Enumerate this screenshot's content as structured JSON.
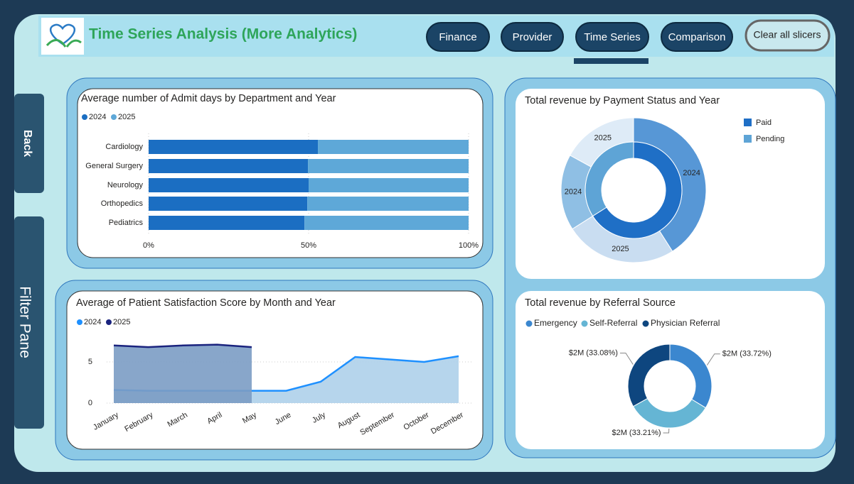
{
  "header": {
    "title": "Time Series Analysis (More Analytics)"
  },
  "nav": {
    "buttons": [
      "Finance",
      "Provider",
      "Time Series",
      "Comparison"
    ],
    "clear": "Clear all slicers"
  },
  "side_tabs": [
    "Back",
    "Filter Pane"
  ],
  "chart_data": [
    {
      "type": "hbar_stacked",
      "title": "Average number of Admit days by Department and Year",
      "categories": [
        "Cardiology",
        "General Surgery",
        "Neurology",
        "Orthopedics",
        "Pediatrics"
      ],
      "series": [
        {
          "name": "2024",
          "color": "#1b6ec2",
          "values": [
            52.9,
            49.8,
            50,
            49.6,
            48.7
          ]
        },
        {
          "name": "2025",
          "color": "#5ea8d8",
          "values": [
            47.1,
            50.2,
            50,
            50.4,
            51.3
          ]
        }
      ],
      "xlim": [
        0,
        100
      ],
      "xticks": [
        {
          "value": 0,
          "label": "0%"
        },
        {
          "value": 50,
          "label": "50%"
        },
        {
          "value": 100,
          "label": "100%"
        }
      ]
    },
    {
      "type": "area",
      "title": "Average of Patient Satisfaction Score by Month and Year",
      "categories": [
        "January",
        "February",
        "March",
        "April",
        "May",
        "June",
        "July",
        "August",
        "September",
        "October",
        "December"
      ],
      "series": [
        {
          "name": "2024",
          "color": "#1e90ff",
          "fill": "#aed0ea",
          "values": [
            1.6,
            1.5,
            1.5,
            1.5,
            1.5,
            1.5,
            2.6,
            5.6,
            5.3,
            5.0,
            5.7
          ]
        },
        {
          "name": "2025",
          "color": "#1a237e",
          "fill": "#7b9cc4",
          "values": [
            7.0,
            6.8,
            7.0,
            7.1,
            6.8,
            null,
            null,
            null,
            null,
            null,
            null
          ]
        }
      ],
      "ylim": [
        0,
        8
      ],
      "yticks": [
        0,
        5
      ],
      "grid": true
    },
    {
      "type": "nested_donut",
      "title": "Total revenue by Payment Status and Year",
      "series": [
        {
          "name": "Paid",
          "color": "#1f6fc6",
          "years": [
            "2024",
            "2025"
          ],
          "year_colors": [
            "#5797d6",
            "#c9ddf1"
          ],
          "values": [
            41,
            25
          ]
        },
        {
          "name": "Pending",
          "color": "#5ea4d6",
          "years": [
            "2024",
            "2025"
          ],
          "year_colors": [
            "#8fbfe4",
            "#deebf7"
          ],
          "values": [
            17,
            17
          ]
        }
      ],
      "legend": "top-right"
    },
    {
      "type": "donut",
      "title": "Total revenue by Referral Source",
      "categories": [
        "Emergency",
        "Self-Referral",
        "Physician Referral"
      ],
      "values": [
        33.72,
        33.21,
        33.08
      ],
      "value_labels": [
        "$2M (33.72%)",
        "$2M (33.21%)",
        "$2M (33.08%)"
      ],
      "colors": [
        "#3b87cf",
        "#65b5d4",
        "#0e467f"
      ],
      "legend": "top-left"
    }
  ]
}
